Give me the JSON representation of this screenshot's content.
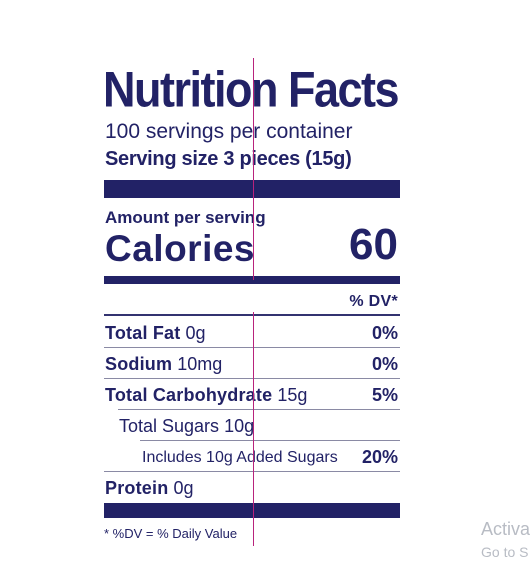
{
  "label": {
    "title": "Nutrition Facts",
    "servings_per_container": "100 servings per container",
    "serving_size": "Serving size 3 pieces (15g)",
    "amount_per_serving": "Amount per serving",
    "calories_label": "Calories",
    "calories_value": "60",
    "dv_header": "% DV*",
    "rows": [
      {
        "name": "Total Fat",
        "amount": "0g",
        "dv": "0%",
        "bold": true,
        "indent": 0
      },
      {
        "name": "Sodium",
        "amount": "10mg",
        "dv": "0%",
        "bold": true,
        "indent": 0
      },
      {
        "name": "Total Carbohydrate",
        "amount": "15g",
        "dv": "5%",
        "bold": true,
        "indent": 0
      },
      {
        "name": "Total Sugars",
        "amount": "10g",
        "dv": "",
        "bold": false,
        "indent": 1
      },
      {
        "name": "Includes 10g Added Sugars",
        "amount": "",
        "dv": "20%",
        "bold": false,
        "indent": 2
      },
      {
        "name": "Protein",
        "amount": "0g",
        "dv": "",
        "bold": true,
        "indent": 0
      }
    ],
    "footnote": "* %DV = % Daily Value"
  },
  "watermark": {
    "line1": "Activa",
    "line2": "Go to S"
  },
  "colors": {
    "label_ink": "#222266",
    "guide_line": "#b8237c",
    "watermark": "#b8bcc4"
  }
}
